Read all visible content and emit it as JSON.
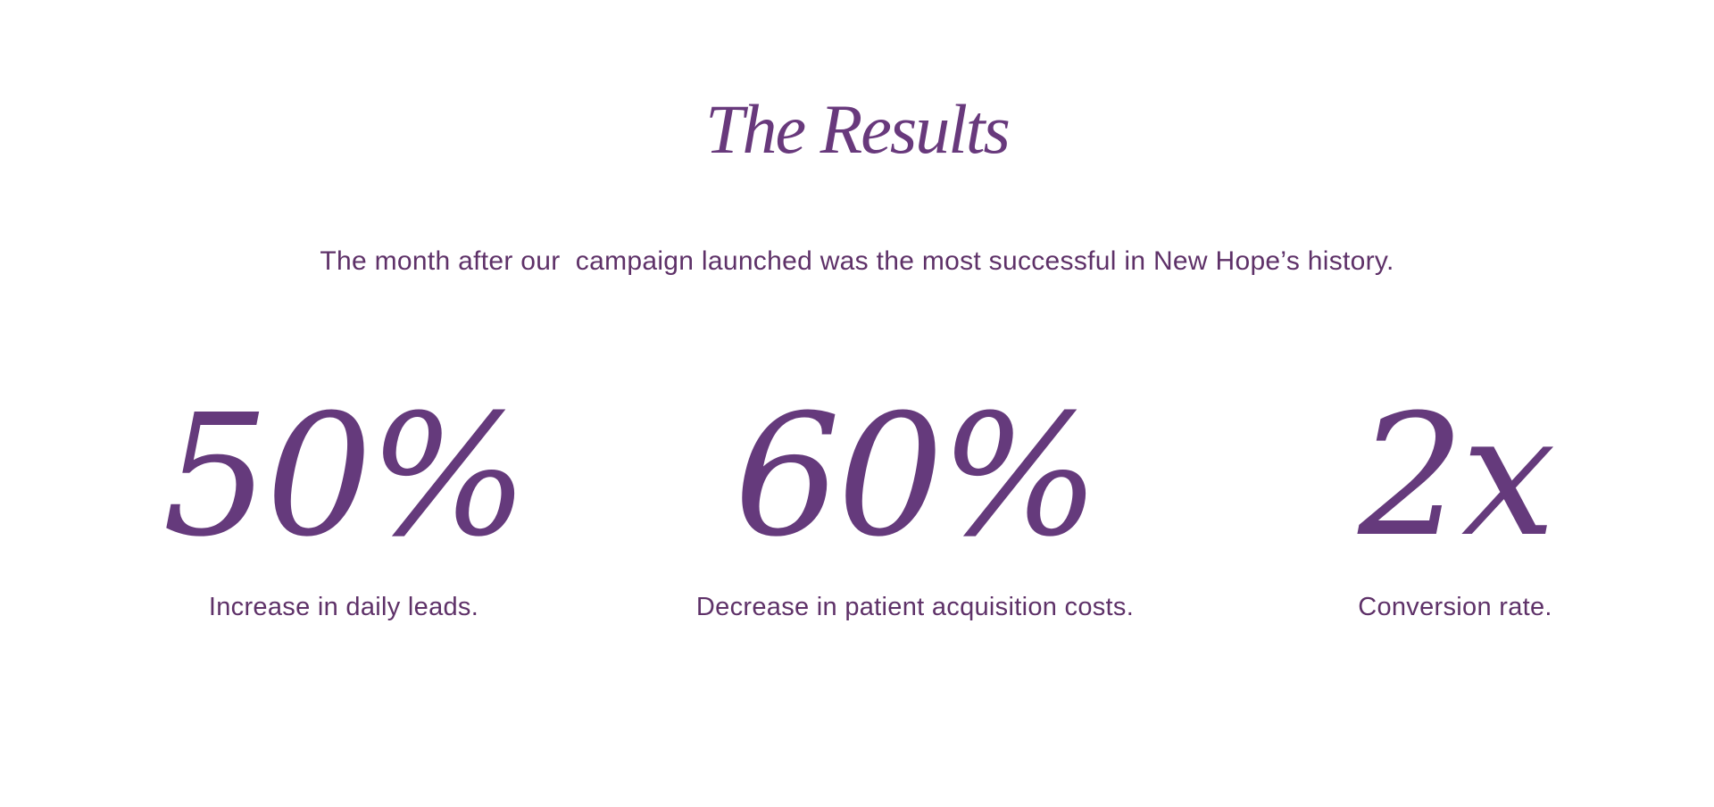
{
  "colors": {
    "background": "#ffffff",
    "heading": "#68397c",
    "body": "#5e3168",
    "stat": "#653a7c"
  },
  "results_section": {
    "title": "The Results",
    "subtitle": "The month after our  campaign launched was the most successful in New Hope’s history.",
    "stats": [
      {
        "value": "50%",
        "label": "Increase in daily leads."
      },
      {
        "value": "60%",
        "label": "Decrease in patient acquisition costs."
      },
      {
        "value": "2x",
        "label": "Conversion rate."
      }
    ]
  }
}
